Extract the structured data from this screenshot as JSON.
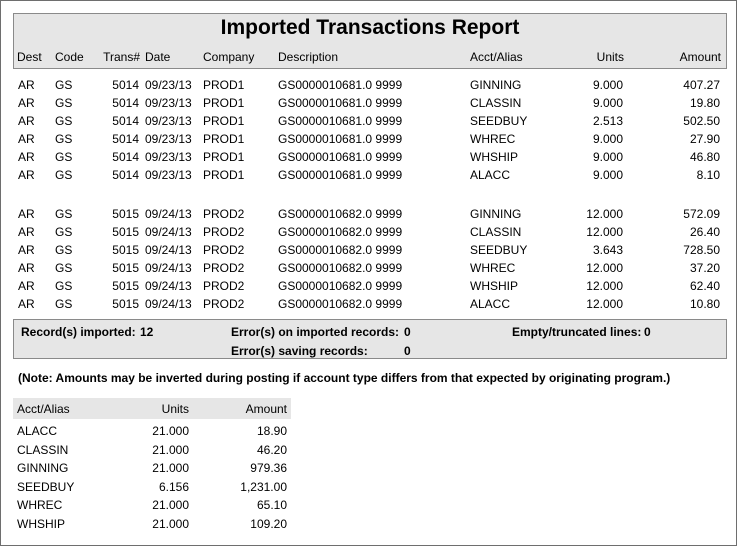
{
  "report": {
    "title": "Imported Transactions Report",
    "columns": {
      "dest": "Dest",
      "code": "Code",
      "trans": "Trans#",
      "date": "Date",
      "company": "Company",
      "description": "Description",
      "acct": "Acct/Alias",
      "units": "Units",
      "amount": "Amount"
    },
    "rows": [
      {
        "dest": "AR",
        "code": "GS",
        "trans": "5014",
        "date": "09/23/13",
        "company": "PROD1",
        "description": "GS0000010681.0 9999",
        "acct": "GINNING",
        "units": "9.000",
        "amount": "407.27"
      },
      {
        "dest": "AR",
        "code": "GS",
        "trans": "5014",
        "date": "09/23/13",
        "company": "PROD1",
        "description": "GS0000010681.0 9999",
        "acct": "CLASSIN",
        "units": "9.000",
        "amount": "19.80"
      },
      {
        "dest": "AR",
        "code": "GS",
        "trans": "5014",
        "date": "09/23/13",
        "company": "PROD1",
        "description": "GS0000010681.0 9999",
        "acct": "SEEDBUY",
        "units": "2.513",
        "amount": "502.50"
      },
      {
        "dest": "AR",
        "code": "GS",
        "trans": "5014",
        "date": "09/23/13",
        "company": "PROD1",
        "description": "GS0000010681.0 9999",
        "acct": "WHREC",
        "units": "9.000",
        "amount": "27.90"
      },
      {
        "dest": "AR",
        "code": "GS",
        "trans": "5014",
        "date": "09/23/13",
        "company": "PROD1",
        "description": "GS0000010681.0 9999",
        "acct": "WHSHIP",
        "units": "9.000",
        "amount": "46.80"
      },
      {
        "dest": "AR",
        "code": "GS",
        "trans": "5014",
        "date": "09/23/13",
        "company": "PROD1",
        "description": "GS0000010681.0 9999",
        "acct": "ALACC",
        "units": "9.000",
        "amount": "8.10"
      },
      {
        "dest": "AR",
        "code": "GS",
        "trans": "5015",
        "date": "09/24/13",
        "company": "PROD2",
        "description": "GS0000010682.0 9999",
        "acct": "GINNING",
        "units": "12.000",
        "amount": "572.09"
      },
      {
        "dest": "AR",
        "code": "GS",
        "trans": "5015",
        "date": "09/24/13",
        "company": "PROD2",
        "description": "GS0000010682.0 9999",
        "acct": "CLASSIN",
        "units": "12.000",
        "amount": "26.40"
      },
      {
        "dest": "AR",
        "code": "GS",
        "trans": "5015",
        "date": "09/24/13",
        "company": "PROD2",
        "description": "GS0000010682.0 9999",
        "acct": "SEEDBUY",
        "units": "3.643",
        "amount": "728.50"
      },
      {
        "dest": "AR",
        "code": "GS",
        "trans": "5015",
        "date": "09/24/13",
        "company": "PROD2",
        "description": "GS0000010682.0 9999",
        "acct": "WHREC",
        "units": "12.000",
        "amount": "37.20"
      },
      {
        "dest": "AR",
        "code": "GS",
        "trans": "5015",
        "date": "09/24/13",
        "company": "PROD2",
        "description": "GS0000010682.0 9999",
        "acct": "WHSHIP",
        "units": "12.000",
        "amount": "62.40"
      },
      {
        "dest": "AR",
        "code": "GS",
        "trans": "5015",
        "date": "09/24/13",
        "company": "PROD2",
        "description": "GS0000010682.0 9999",
        "acct": "ALACC",
        "units": "12.000",
        "amount": "10.80"
      }
    ]
  },
  "summary": {
    "records_imported_label": "Record(s) imported:",
    "records_imported_value": "12",
    "errors_imported_label": "Error(s) on imported records:",
    "errors_imported_value": "0",
    "errors_saving_label": "Error(s) saving records:",
    "errors_saving_value": "0",
    "empty_lines_label": "Empty/truncated lines:",
    "empty_lines_value": "0"
  },
  "note": "(Note: Amounts may be inverted during posting if account type differs from that expected by originating program.)",
  "totals": {
    "columns": {
      "acct": "Acct/Alias",
      "units": "Units",
      "amount": "Amount"
    },
    "rows": [
      {
        "acct": "ALACC",
        "units": "21.000",
        "amount": "18.90"
      },
      {
        "acct": "CLASSIN",
        "units": "21.000",
        "amount": "46.20"
      },
      {
        "acct": "GINNING",
        "units": "21.000",
        "amount": "979.36"
      },
      {
        "acct": "SEEDBUY",
        "units": "6.156",
        "amount": "1,231.00"
      },
      {
        "acct": "WHREC",
        "units": "21.000",
        "amount": "65.10"
      },
      {
        "acct": "WHSHIP",
        "units": "21.000",
        "amount": "109.20"
      }
    ]
  }
}
